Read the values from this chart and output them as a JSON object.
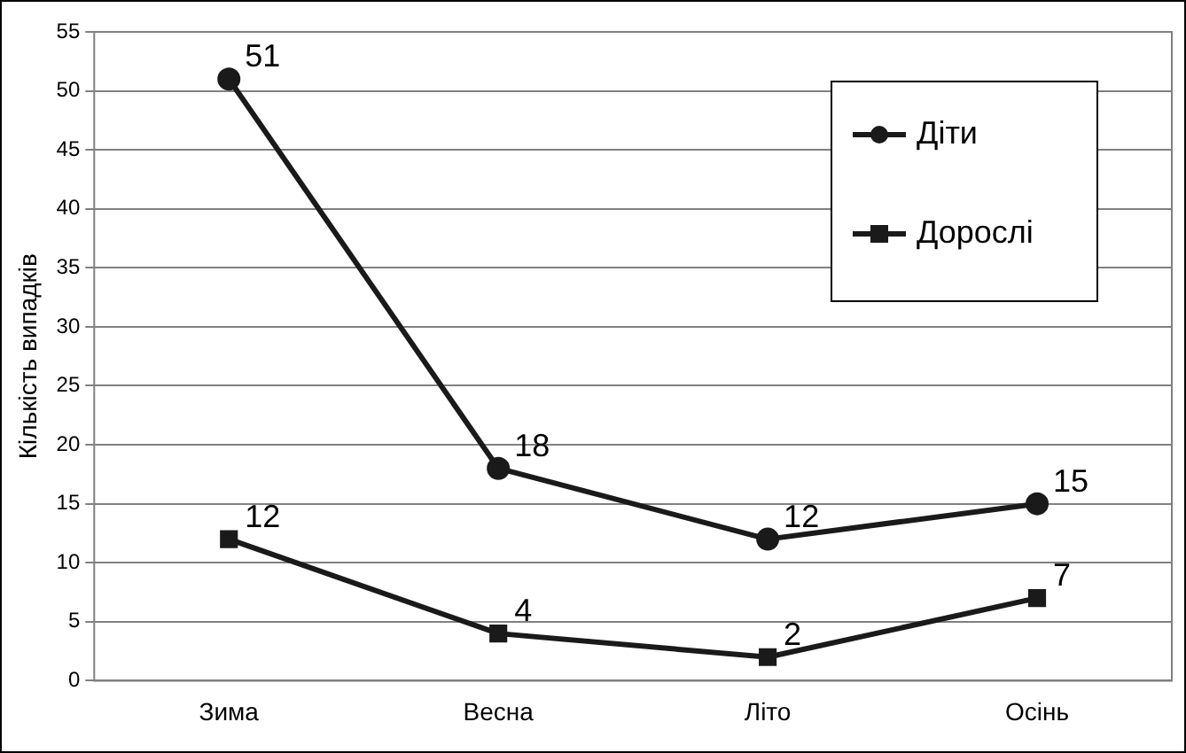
{
  "chart_data": {
    "type": "line",
    "ylabel": "Кількість випадків",
    "categories": [
      "Зима",
      "Весна",
      "Літо",
      "Осінь"
    ],
    "series": [
      {
        "name": "Діти",
        "color": "#1a1a1a",
        "marker": "circle",
        "values": [
          51,
          18,
          12,
          15
        ]
      },
      {
        "name": "Дорослі",
        "color": "#1a1a1a",
        "marker": "square",
        "values": [
          12,
          4,
          2,
          7
        ]
      }
    ],
    "ylim": [
      0,
      55
    ],
    "yticks": [
      0,
      5,
      10,
      15,
      20,
      25,
      30,
      35,
      40,
      45,
      50,
      55
    ],
    "grid": "y",
    "legend": "top right",
    "data_labels": true
  }
}
